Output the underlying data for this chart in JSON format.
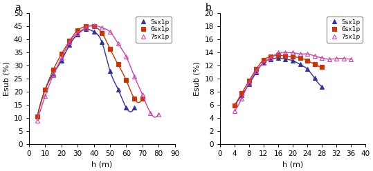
{
  "panel_a": {
    "series": [
      {
        "label": "5sx1p",
        "color": "#3030a0",
        "marker": "^",
        "markerfacecolor": "#3030a0",
        "x": [
          5,
          10,
          15,
          20,
          25,
          30,
          35,
          40,
          45,
          50,
          55,
          60,
          65
        ],
        "y": [
          10.5,
          21,
          27,
          32,
          38,
          42,
          44,
          43,
          39,
          28,
          21,
          14,
          14
        ]
      },
      {
        "label": "6sx1p",
        "color": "#cc3300",
        "marker": "s",
        "markerfacecolor": "#cc3300",
        "x": [
          5,
          10,
          15,
          20,
          25,
          30,
          35,
          40,
          45,
          50,
          55,
          60,
          65,
          70
        ],
        "y": [
          10.5,
          21,
          28.5,
          34.5,
          39.5,
          43.5,
          45.0,
          45.0,
          42.5,
          36.5,
          30.5,
          24.5,
          17.5,
          17.5
        ]
      },
      {
        "label": "7sx1p",
        "color": "#cc44aa",
        "marker": "^",
        "markerfacecolor": "none",
        "markeredgecolor": "#cc44aa",
        "x": [
          5,
          10,
          15,
          20,
          25,
          30,
          35,
          40,
          45,
          50,
          55,
          60,
          65,
          70,
          75,
          80
        ],
        "y": [
          9.0,
          18.5,
          26.5,
          33.0,
          39.0,
          42.5,
          44.5,
          45.5,
          44.5,
          43.0,
          38.5,
          33.5,
          26.0,
          19.0,
          12.0,
          11.5
        ]
      }
    ],
    "xlabel": "h (m)",
    "ylabel": "Esub (%)",
    "xlim": [
      0,
      90
    ],
    "ylim": [
      0,
      50
    ],
    "xticks": [
      0,
      10,
      20,
      30,
      40,
      50,
      60,
      70,
      80,
      90
    ],
    "yticks": [
      0,
      5,
      10,
      15,
      20,
      25,
      30,
      35,
      40,
      45,
      50
    ],
    "label": "a"
  },
  "panel_b": {
    "series": [
      {
        "label": "5sx1p",
        "color": "#3030a0",
        "marker": "^",
        "markerfacecolor": "#3030a0",
        "x": [
          4,
          6,
          8,
          10,
          12,
          14,
          16,
          18,
          20,
          22,
          24,
          26,
          28
        ],
        "y": [
          5.9,
          7.5,
          9.2,
          11.0,
          12.5,
          13.0,
          13.2,
          13.0,
          12.8,
          12.2,
          11.5,
          10.1,
          8.8
        ]
      },
      {
        "label": "6sx1p",
        "color": "#cc3300",
        "marker": "s",
        "markerfacecolor": "#cc3300",
        "x": [
          4,
          6,
          8,
          10,
          12,
          14,
          16,
          18,
          20,
          22,
          24,
          26,
          28
        ],
        "y": [
          5.9,
          7.8,
          9.7,
          11.5,
          12.9,
          13.4,
          13.6,
          13.5,
          13.4,
          13.2,
          12.8,
          12.2,
          11.8
        ]
      },
      {
        "label": "7sx1p",
        "color": "#cc44aa",
        "marker": "^",
        "markerfacecolor": "none",
        "markeredgecolor": "#cc44aa",
        "x": [
          4,
          6,
          8,
          10,
          12,
          14,
          16,
          18,
          20,
          22,
          24,
          26,
          28,
          30,
          32,
          34,
          36
        ],
        "y": [
          5.1,
          7.0,
          9.4,
          11.2,
          12.5,
          13.2,
          14.0,
          14.0,
          14.0,
          13.8,
          13.8,
          13.5,
          13.2,
          13.0,
          13.1,
          13.1,
          13.0
        ]
      }
    ],
    "xlabel": "h (m)",
    "ylabel": "Esub (%)",
    "xlim": [
      0,
      40
    ],
    "ylim": [
      0,
      20
    ],
    "xticks": [
      0,
      4,
      8,
      12,
      16,
      20,
      24,
      28,
      32,
      36,
      40
    ],
    "yticks": [
      0,
      2,
      4,
      6,
      8,
      10,
      12,
      14,
      16,
      18,
      20
    ],
    "label": "b"
  }
}
